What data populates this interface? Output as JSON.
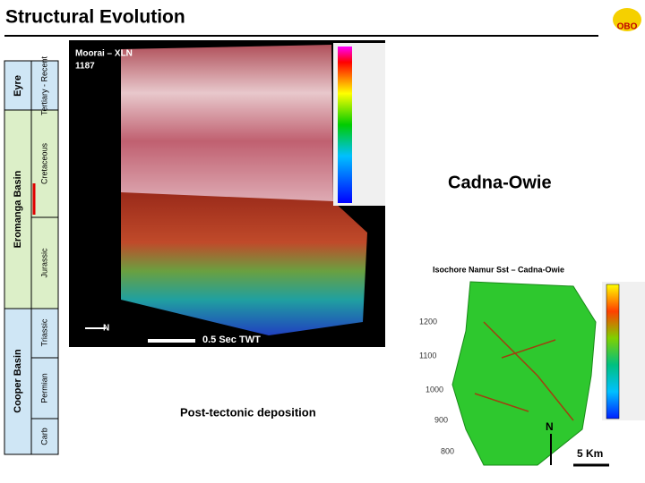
{
  "header": {
    "title": "Structural Evolution"
  },
  "column": {
    "basins": [
      "Eyre",
      "Eromanga Basin",
      "Cooper Basin"
    ],
    "periods": [
      "Tertiary - Recent",
      "Cretaceous",
      "Jurassic",
      "Triassic",
      "Permian",
      "Carb"
    ]
  },
  "seismic": {
    "line": "Moorai – XLN",
    "number": "1187",
    "north": "N",
    "scale": "0.5 Sec TWT"
  },
  "heading": "Cadna-Owie",
  "caption": "Post-tectonic deposition",
  "map": {
    "title": "Isochore Namur Sst – Cadna-Owie",
    "north": "N",
    "scale": "5 Km",
    "contours": [
      "1200",
      "1100",
      "1000",
      "900",
      "800"
    ]
  }
}
